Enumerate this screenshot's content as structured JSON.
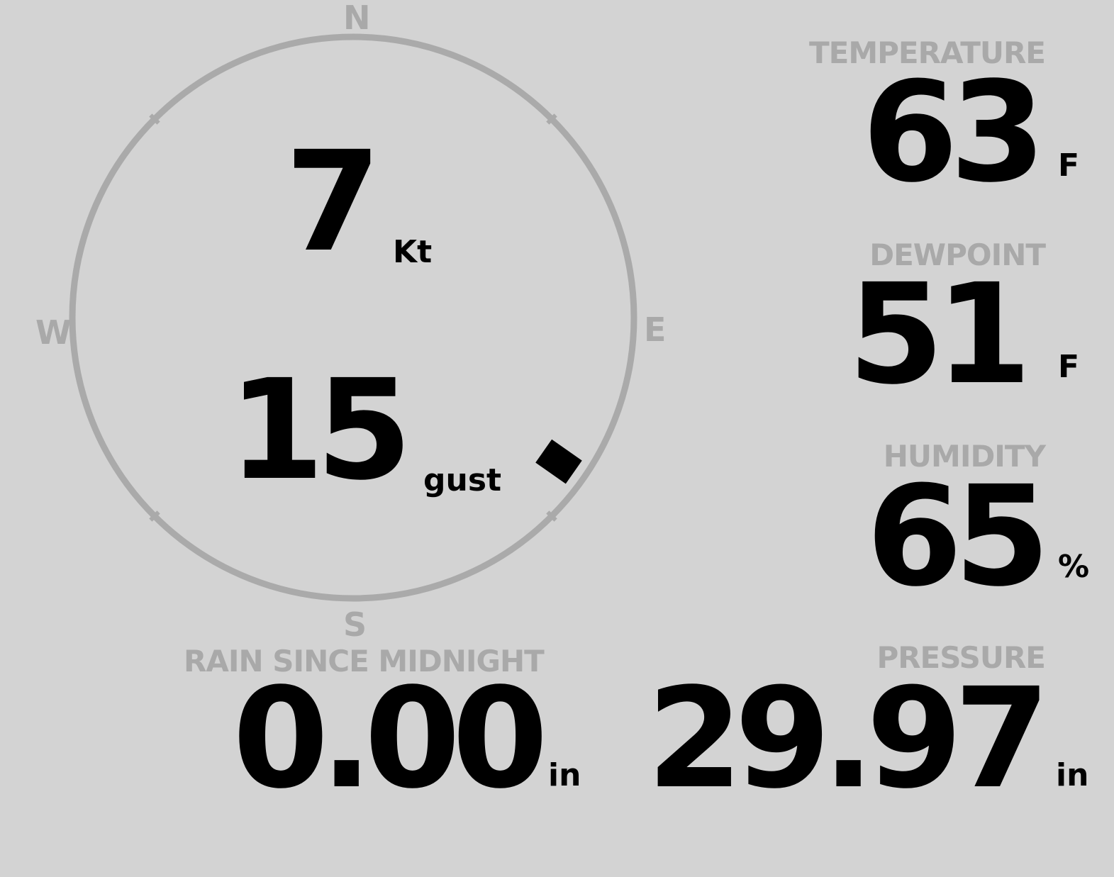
{
  "wind": {
    "compass": {
      "n": "N",
      "e": "E",
      "s": "S",
      "w": "W"
    },
    "speed": "7",
    "speed_unit": "Kt",
    "gust": "15",
    "gust_unit": "gust",
    "direction_deg": 125
  },
  "temperature": {
    "label": "TEMPERATURE",
    "value": "63",
    "unit": "F"
  },
  "dewpoint": {
    "label": "DEWPOINT",
    "value": "51",
    "unit": "F"
  },
  "humidity": {
    "label": "HUMIDITY",
    "value": "65",
    "unit": "%"
  },
  "rain": {
    "label": "RAIN SINCE MIDNIGHT",
    "value": "0.00",
    "unit": "in"
  },
  "pressure": {
    "label": "PRESSURE",
    "value": "29.97",
    "unit": "in"
  },
  "colors": {
    "background": "#d3d3d3",
    "ring": "#aaaaaa",
    "label": "#a9a9a9",
    "value": "#000000"
  }
}
